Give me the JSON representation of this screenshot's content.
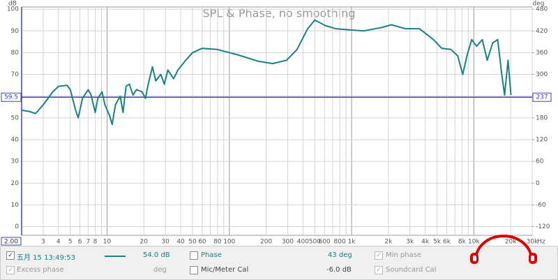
{
  "chart_data": {
    "type": "line",
    "title": "SPL & Phase, no smoothing",
    "ylabel": "dB",
    "y2label": "deg",
    "xlabel": "Hz",
    "xscale": "log",
    "grid": true,
    "xlim": [
      2,
      30000
    ],
    "ylim": [
      -4,
      101
    ],
    "y2lim": [
      -144,
      486
    ],
    "xticks": [
      {
        "value": 2,
        "label": "2.00"
      },
      3,
      4,
      5,
      6,
      7,
      8,
      10,
      20,
      30,
      40,
      50,
      60,
      80,
      100,
      200,
      300,
      400,
      500,
      600,
      800,
      {
        "value": 1000,
        "label": "1k"
      },
      {
        "value": 2000,
        "label": "2k"
      },
      {
        "value": 3000,
        "label": "3k"
      },
      {
        "value": 4000,
        "label": "4k"
      },
      {
        "value": 5000,
        "label": "5k"
      },
      {
        "value": 6000,
        "label": "6k"
      },
      {
        "value": 8000,
        "label": "8k"
      },
      {
        "value": 10000,
        "label": "10k"
      },
      {
        "value": 20000,
        "label": "20k"
      },
      {
        "value": 30000,
        "label": "30k"
      }
    ],
    "xgrid_minor": [
      9,
      70,
      90,
      700,
      900,
      7000,
      9000
    ],
    "yticks": [
      0,
      10,
      20,
      30,
      40,
      50,
      60,
      70,
      80,
      90,
      100
    ],
    "y2ticks": [
      -120,
      -60,
      0,
      60,
      120,
      180,
      240,
      300,
      360,
      420,
      480
    ],
    "cursor": {
      "y": 59.5,
      "y2": 237
    },
    "x": [
      2.0,
      2.3,
      2.6,
      3,
      3.6,
      4,
      4.7,
      5,
      5.5,
      5.8,
      6.3,
      7,
      7.4,
      8,
      8.4,
      9.1,
      9.6,
      10.5,
      11,
      11.7,
      12.8,
      13.5,
      14.3,
      15.2,
      16.3,
      17.4,
      19.3,
      20.6,
      21.7,
      23.5,
      25,
      27.5,
      29.4,
      31.4,
      35,
      38,
      44,
      50,
      60,
      79,
      117,
      174,
      226,
      294,
      358,
      437,
      500,
      607,
      739,
      1250,
      1740,
      2120,
      2750,
      3580,
      4670,
      5460,
      6480,
      7390,
      8110,
      8770,
      9610,
      10540,
      11720,
      12850,
      14270,
      15650,
      16930,
      17840,
      19050,
      20090
    ],
    "series": [
      {
        "name": "五月 15 13:49:53",
        "color": "#1a8080",
        "values": [
          53.5,
          53,
          52,
          56,
          62,
          64.5,
          65,
          63,
          54,
          50,
          59,
          63,
          60.5,
          52.5,
          59,
          62,
          56,
          51,
          47,
          56,
          60,
          52.5,
          64.5,
          65.5,
          60.5,
          63,
          62,
          59,
          65.5,
          73.5,
          67,
          70,
          65.5,
          72,
          68,
          72,
          76.5,
          80,
          82,
          81.5,
          79,
          76,
          75,
          76.5,
          81.5,
          91,
          95,
          92.5,
          91,
          90,
          91.5,
          92.8,
          91,
          91,
          86,
          82,
          81.5,
          78.5,
          70,
          78.5,
          86,
          83,
          86,
          76.5,
          84.5,
          86,
          70,
          60.5,
          76.5,
          60.5
        ]
      }
    ]
  },
  "controls": {
    "spl_value": "54.0 dB",
    "phase": "Phase",
    "phase_value": "43 deg",
    "min_phase": "Min phase",
    "excess_phase": "Excess phase",
    "excess_unit": "deg",
    "mic_cal": "Mic/Meter Cal",
    "mic_cal_value": "-6.0 dB",
    "soundcard_cal": "Soundcard Cal"
  }
}
